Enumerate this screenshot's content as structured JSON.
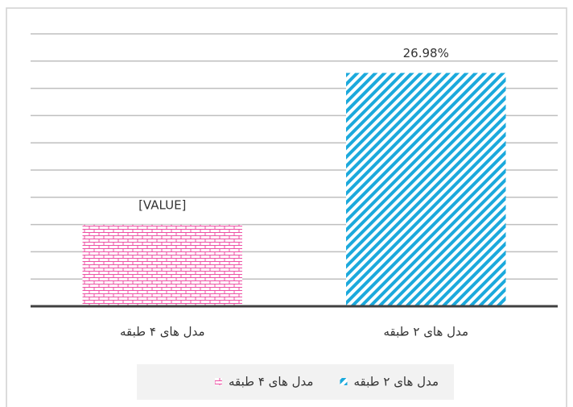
{
  "chart_data": {
    "type": "bar",
    "categories": [
      "مدل های ۴ طبقه",
      "مدل های ۲ طبقه"
    ],
    "series": [
      {
        "name": "مدل های ۲ طبقه",
        "color": "#1ba9dc",
        "pattern": "diagonal",
        "values": [
          null,
          26.98
        ],
        "value_labels": [
          null,
          "26.98%"
        ]
      },
      {
        "name": "مدل های ۴ طبقه",
        "color": "#ec4fa3",
        "pattern": "brick",
        "values": [
          9.43,
          null
        ],
        "value_labels": [
          "[VALUE]",
          null
        ]
      }
    ],
    "ylim": [
      0,
      31.5
    ],
    "yticks": [
      0,
      3.15,
      6.3,
      9.45,
      12.6,
      15.75,
      18.9,
      22.05,
      25.2,
      28.35,
      31.5
    ],
    "grid": true,
    "legend": "bottom"
  }
}
